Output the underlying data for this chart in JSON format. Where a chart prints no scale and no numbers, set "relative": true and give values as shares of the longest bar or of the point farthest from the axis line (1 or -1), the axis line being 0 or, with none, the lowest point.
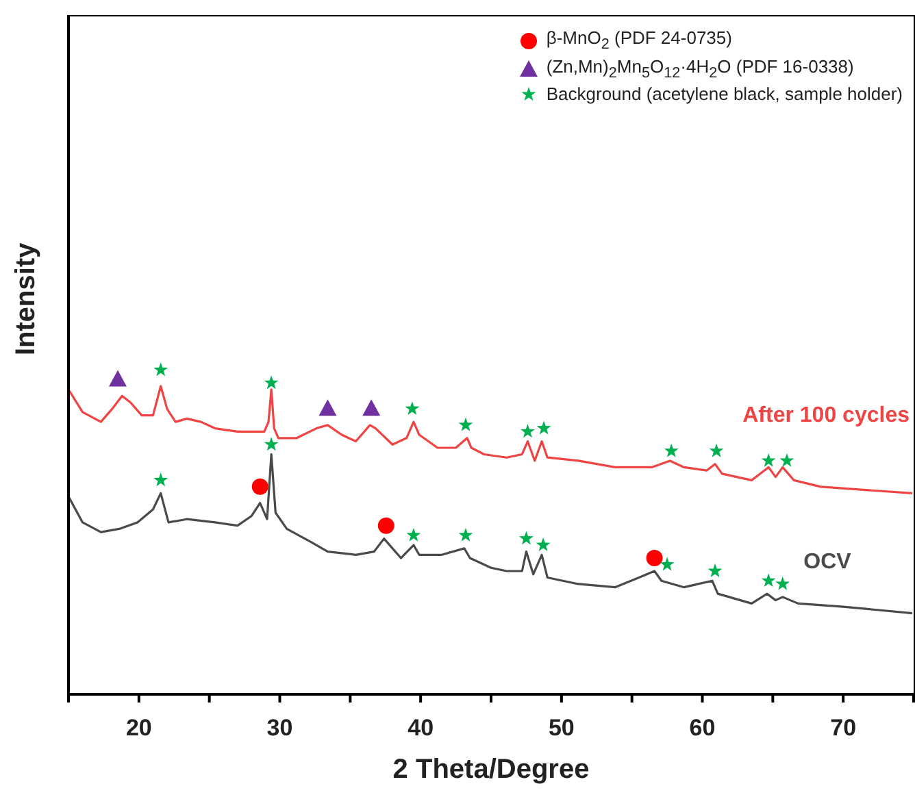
{
  "chart_data": {
    "type": "line",
    "relative": true,
    "xlabel": "2 Theta/Degree",
    "ylabel": "Intensity",
    "xlim": [
      15,
      75
    ],
    "xticks": [
      {
        "value": 15,
        "label": null
      },
      20,
      {
        "value": 25,
        "label": null
      },
      30,
      {
        "value": 35,
        "label": null
      },
      40,
      {
        "value": 45,
        "label": null
      },
      50,
      {
        "value": 55,
        "label": null
      },
      60,
      {
        "value": 65,
        "label": null
      },
      70,
      {
        "value": 75,
        "label": null
      }
    ],
    "legend": "top right",
    "line_style": "solid",
    "series": [
      {
        "name": "After 100 cycles",
        "color": "#ef4444",
        "marker": "none",
        "x": [
          15.0,
          16.0,
          17.3,
          18.1,
          18.8,
          19.4,
          20.2,
          21.0,
          21.55,
          22.0,
          22.6,
          23.4,
          24.4,
          25.4,
          27.0,
          28.9,
          29.2,
          29.4,
          29.6,
          29.9,
          31.2,
          32.6,
          33.4,
          34.4,
          35.4,
          36.4,
          36.8,
          38.0,
          39.0,
          39.5,
          39.9,
          41.2,
          42.5,
          43.3,
          43.6,
          44.5,
          46.1,
          47.2,
          47.6,
          48.1,
          48.6,
          49.0,
          51.2,
          53.8,
          56.4,
          57.7,
          58.7,
          60.3,
          60.9,
          61.4,
          63.5,
          64.7,
          65.2,
          65.7,
          66.5,
          68.4,
          71.6,
          74.9
        ],
        "values": [
          0.94,
          0.87,
          0.84,
          0.88,
          0.92,
          0.9,
          0.86,
          0.86,
          0.95,
          0.88,
          0.84,
          0.85,
          0.84,
          0.82,
          0.81,
          0.81,
          0.84,
          0.94,
          0.82,
          0.79,
          0.79,
          0.82,
          0.83,
          0.8,
          0.78,
          0.83,
          0.82,
          0.77,
          0.79,
          0.84,
          0.8,
          0.76,
          0.76,
          0.79,
          0.76,
          0.74,
          0.73,
          0.74,
          0.78,
          0.72,
          0.78,
          0.73,
          0.72,
          0.7,
          0.7,
          0.72,
          0.7,
          0.69,
          0.71,
          0.68,
          0.66,
          0.7,
          0.67,
          0.7,
          0.66,
          0.64,
          0.63,
          0.62
        ]
      },
      {
        "name": "OCV",
        "color": "#4a4a4a",
        "marker": "none",
        "x": [
          15.0,
          16.0,
          17.3,
          18.6,
          19.9,
          21.0,
          21.55,
          22.1,
          23.4,
          25.4,
          27.0,
          28.0,
          28.6,
          29.1,
          29.4,
          29.7,
          30.5,
          32.2,
          33.4,
          35.4,
          36.7,
          37.4,
          38.6,
          39.5,
          39.9,
          41.5,
          43.1,
          43.5,
          45.0,
          46.1,
          47.2,
          47.5,
          48.0,
          48.6,
          49.0,
          51.2,
          53.8,
          55.5,
          56.6,
          57.1,
          58.7,
          60.7,
          61.1,
          63.5,
          64.6,
          65.2,
          65.7,
          66.8,
          70.0,
          74.9
        ],
        "values": [
          0.61,
          0.53,
          0.5,
          0.51,
          0.53,
          0.57,
          0.62,
          0.53,
          0.54,
          0.53,
          0.52,
          0.55,
          0.59,
          0.54,
          0.74,
          0.56,
          0.51,
          0.47,
          0.44,
          0.43,
          0.44,
          0.48,
          0.42,
          0.46,
          0.43,
          0.43,
          0.45,
          0.42,
          0.39,
          0.38,
          0.38,
          0.44,
          0.37,
          0.43,
          0.36,
          0.34,
          0.33,
          0.36,
          0.38,
          0.35,
          0.33,
          0.35,
          0.31,
          0.28,
          0.31,
          0.29,
          0.3,
          0.28,
          0.27,
          0.25
        ]
      },
      {
        "name": "β-MnO$_{2}$ (PDF 24-0735)",
        "type": "scatter",
        "color": "#ff0000",
        "marker": "circle",
        "x": [
          28.6,
          37.55,
          56.6
        ],
        "values": [
          0.64,
          0.52,
          0.42
        ]
      },
      {
        "name": "(Zn,Mn)$_{2}$Mn$_{5}$O$_{12}$·4H$_{2}$O (PDF 16-0338)",
        "type": "scatter",
        "color": "#7030a0",
        "marker": "triangle",
        "x": [
          18.5,
          33.4,
          36.5
        ],
        "values": [
          0.97,
          0.88,
          0.88
        ]
      },
      {
        "name": "Background (acetylene black, sample holder)",
        "type": "scatter",
        "color": "#00b050",
        "marker": "star",
        "x": [
          21.55,
          29.4,
          39.4,
          43.2,
          47.6,
          48.75,
          57.8,
          61.0,
          64.7,
          66.0,
          21.55,
          29.4,
          39.5,
          43.2,
          47.5,
          48.7,
          57.5,
          60.9,
          64.7,
          65.7
        ],
        "values": [
          1.0,
          0.96,
          0.88,
          0.83,
          0.81,
          0.82,
          0.75,
          0.75,
          0.72,
          0.72,
          0.66,
          0.77,
          0.49,
          0.49,
          0.48,
          0.46,
          0.4,
          0.38,
          0.35,
          0.34
        ]
      }
    ]
  }
}
